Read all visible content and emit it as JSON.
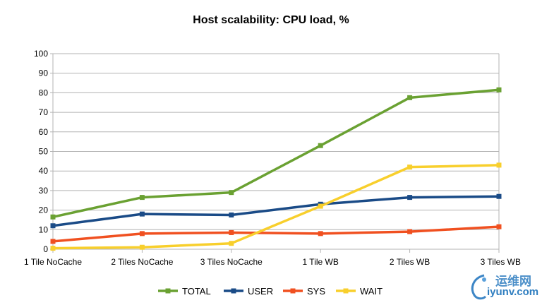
{
  "chart_data": {
    "type": "line",
    "title": "Host scalability: CPU load, %",
    "xlabel": "",
    "ylabel": "",
    "categories": [
      "1 Tile NoCache",
      "2 Tiles NoCache",
      "3 Tiles NoCache",
      "1 Tile WB",
      "2 Tiles WB",
      "3 Tiles WB"
    ],
    "ylim": [
      0,
      100
    ],
    "yticks": [
      0,
      10,
      20,
      30,
      40,
      50,
      60,
      70,
      80,
      90,
      100
    ],
    "grid": true,
    "legend_position": "bottom",
    "series": [
      {
        "name": "TOTAL",
        "color": "#6aa132",
        "values": [
          16.5,
          26.5,
          29,
          53,
          77.5,
          81.5
        ]
      },
      {
        "name": "USER",
        "color": "#1a4b87",
        "values": [
          12,
          18,
          17.5,
          23,
          26.5,
          27
        ]
      },
      {
        "name": "SYS",
        "color": "#f05020",
        "values": [
          4,
          8,
          8.5,
          8,
          9,
          11.5
        ]
      },
      {
        "name": "WAIT",
        "color": "#f8cf2c",
        "values": [
          0.5,
          1,
          3,
          22,
          42,
          43
        ]
      }
    ]
  },
  "watermark": {
    "cn": "运维网",
    "en": "iyunv.com"
  }
}
